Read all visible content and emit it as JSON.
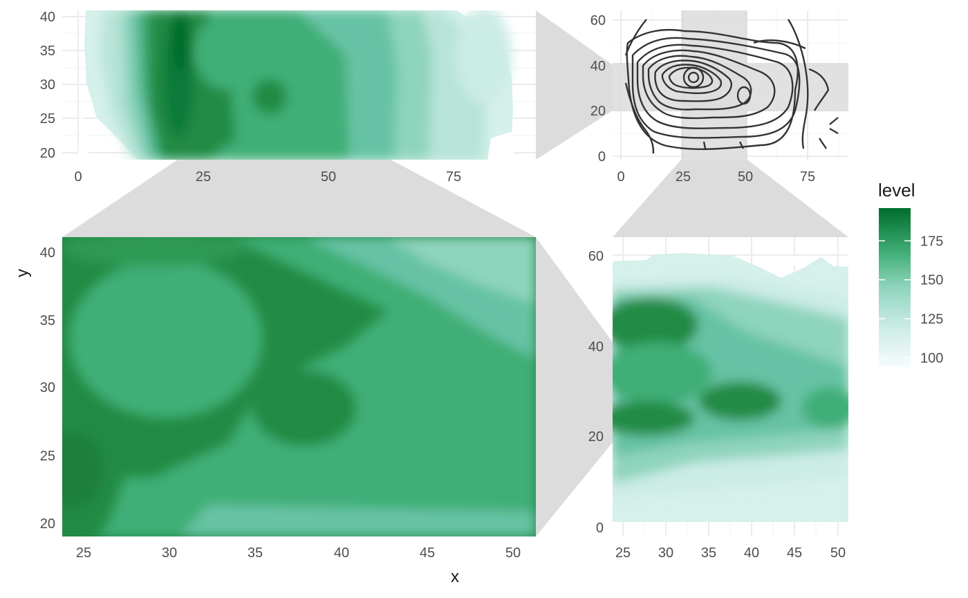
{
  "chart_data": [
    {
      "panel": "overview-filled-density",
      "type": "heatmap",
      "xlim": [
        0,
        91
      ],
      "ylim": [
        19.5,
        41
      ],
      "x_ticks": [
        "0",
        "25",
        "50",
        "75"
      ],
      "y_ticks": [
        "20",
        "25",
        "30",
        "35",
        "40"
      ],
      "grid": true
    },
    {
      "panel": "overview-contour",
      "type": "line",
      "xlim": [
        -2,
        91
      ],
      "ylim": [
        -1,
        63
      ],
      "x_ticks": [
        "0",
        "25",
        "50",
        "75"
      ],
      "y_ticks": [
        "0",
        "20",
        "40",
        "60"
      ],
      "highlight_x_range": [
        24,
        51
      ],
      "highlight_y_range": [
        19.5,
        40.5
      ],
      "contour_color": "#333333",
      "grid": true
    },
    {
      "panel": "zoom-x-y-window",
      "type": "heatmap",
      "xlim": [
        24,
        51.5
      ],
      "ylim": [
        19,
        41
      ],
      "x_ticks": [
        "25",
        "30",
        "35",
        "40",
        "45",
        "50"
      ],
      "y_ticks": [
        "20",
        "25",
        "30",
        "35",
        "40"
      ],
      "xlabel": "x",
      "ylabel": "y",
      "grid": false
    },
    {
      "panel": "zoom-x-window",
      "type": "heatmap",
      "xlim": [
        23.7,
        51.3
      ],
      "ylim": [
        -1,
        63
      ],
      "x_ticks": [
        "25",
        "30",
        "35",
        "40",
        "45",
        "50"
      ],
      "y_ticks": [
        "0",
        "20",
        "40",
        "60"
      ],
      "grid": true
    }
  ],
  "legend": {
    "title": "level",
    "ticks": [
      "100",
      "125",
      "150",
      "175"
    ],
    "tick_values": [
      100,
      125,
      150,
      175
    ],
    "range": [
      94,
      196
    ],
    "placement": "right",
    "color_low": "#f7fcfd",
    "color_mid": "#66c2a4",
    "color_high": "#006d2c"
  },
  "colors": {
    "zoom_band": "#dcdcdc",
    "grid_major": "#ebebeb"
  }
}
